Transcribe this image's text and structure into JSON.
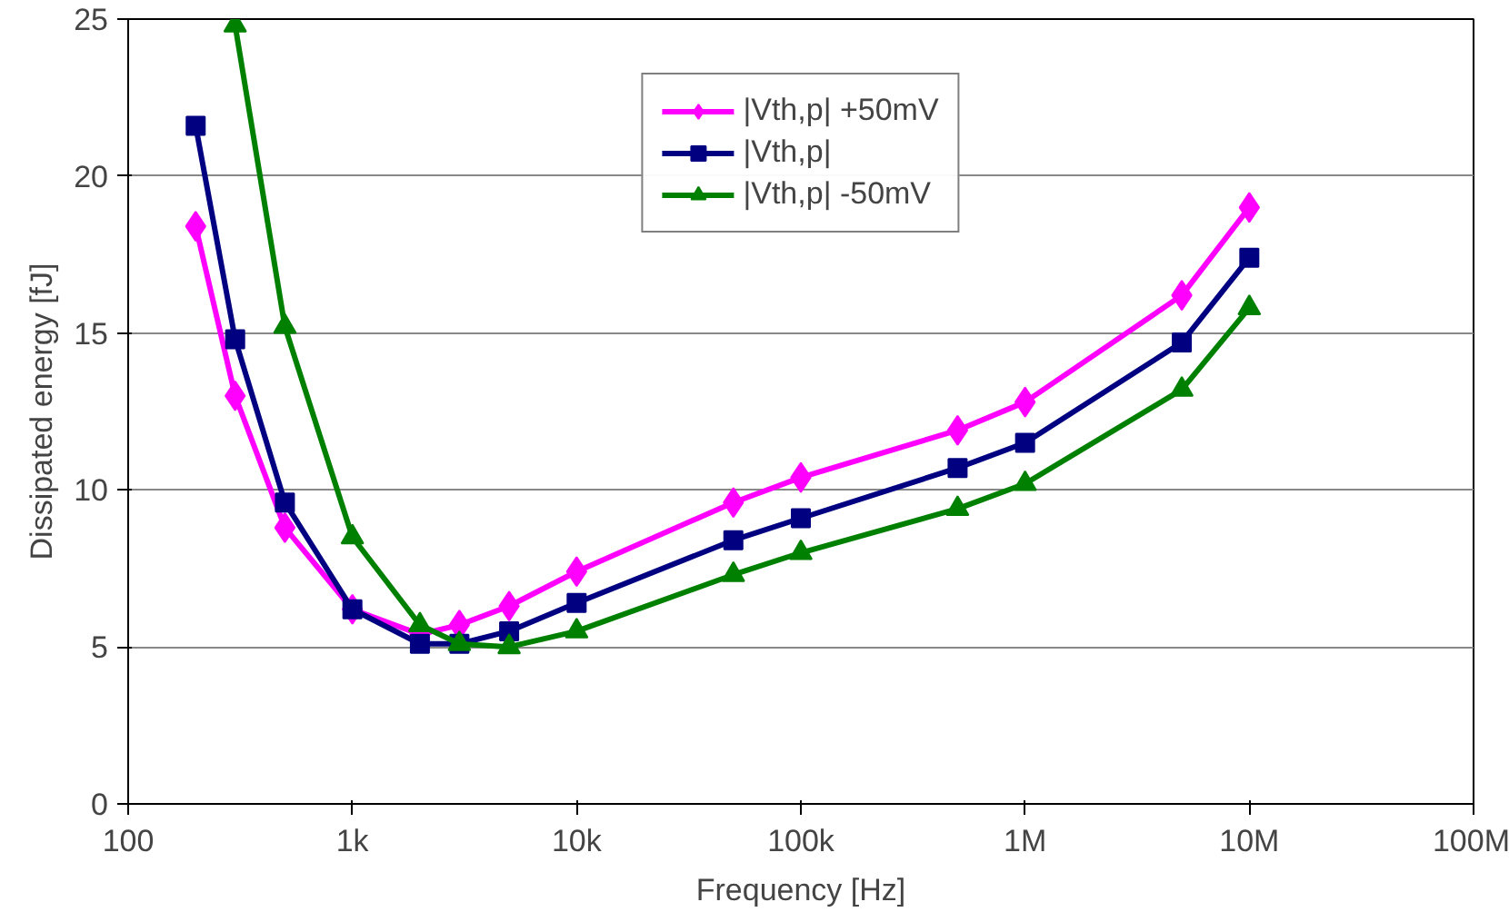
{
  "chart_data": {
    "type": "line",
    "xlabel": "Frequency [Hz]",
    "ylabel": "Dissipated energy [fJ]",
    "log": "x",
    "grid": "y",
    "legend": "top",
    "line_style": "solid",
    "xlim": [
      100,
      100000000
    ],
    "ylim": [
      0,
      25
    ],
    "xticks": [
      100,
      {
        "value": 1000,
        "label": "1k"
      },
      {
        "value": 10000,
        "label": "10k"
      },
      {
        "value": 100000,
        "label": "100k"
      },
      {
        "value": 1000000,
        "label": "1M"
      },
      {
        "value": 10000000,
        "label": "10M"
      },
      {
        "value": 100000000,
        "label": "100M"
      }
    ],
    "yticks": [
      0,
      5,
      10,
      15,
      20,
      25
    ],
    "series": [
      {
        "name": "|Vth,p| +50mV",
        "color": "#ff00ff",
        "marker": "diamond",
        "x": [
          200,
          300,
          500,
          1000,
          2000,
          3000,
          5000,
          10000,
          50000,
          100000,
          500000,
          1000000,
          5000000,
          10000000
        ],
        "values": [
          18.4,
          13.0,
          8.8,
          6.2,
          5.4,
          5.7,
          6.3,
          7.4,
          9.6,
          10.4,
          11.9,
          12.8,
          16.2,
          19.0
        ]
      },
      {
        "name": "|Vth,p|",
        "color": "#000080",
        "marker": "square",
        "x": [
          200,
          300,
          500,
          1000,
          2000,
          3000,
          5000,
          10000,
          50000,
          100000,
          500000,
          1000000,
          5000000,
          10000000
        ],
        "values": [
          21.6,
          14.8,
          9.6,
          6.2,
          5.1,
          5.1,
          5.5,
          6.4,
          8.4,
          9.1,
          10.7,
          11.5,
          14.7,
          17.4
        ]
      },
      {
        "name": "|Vth,p| -50mV",
        "color": "#008000",
        "marker": "triangle",
        "x": [
          300,
          500,
          1000,
          2000,
          3000,
          5000,
          10000,
          50000,
          100000,
          500000,
          1000000,
          5000000,
          10000000
        ],
        "values": [
          24.8,
          15.2,
          8.5,
          5.7,
          5.1,
          5.0,
          5.5,
          7.3,
          8.0,
          9.4,
          10.2,
          13.2,
          15.8
        ]
      }
    ]
  }
}
